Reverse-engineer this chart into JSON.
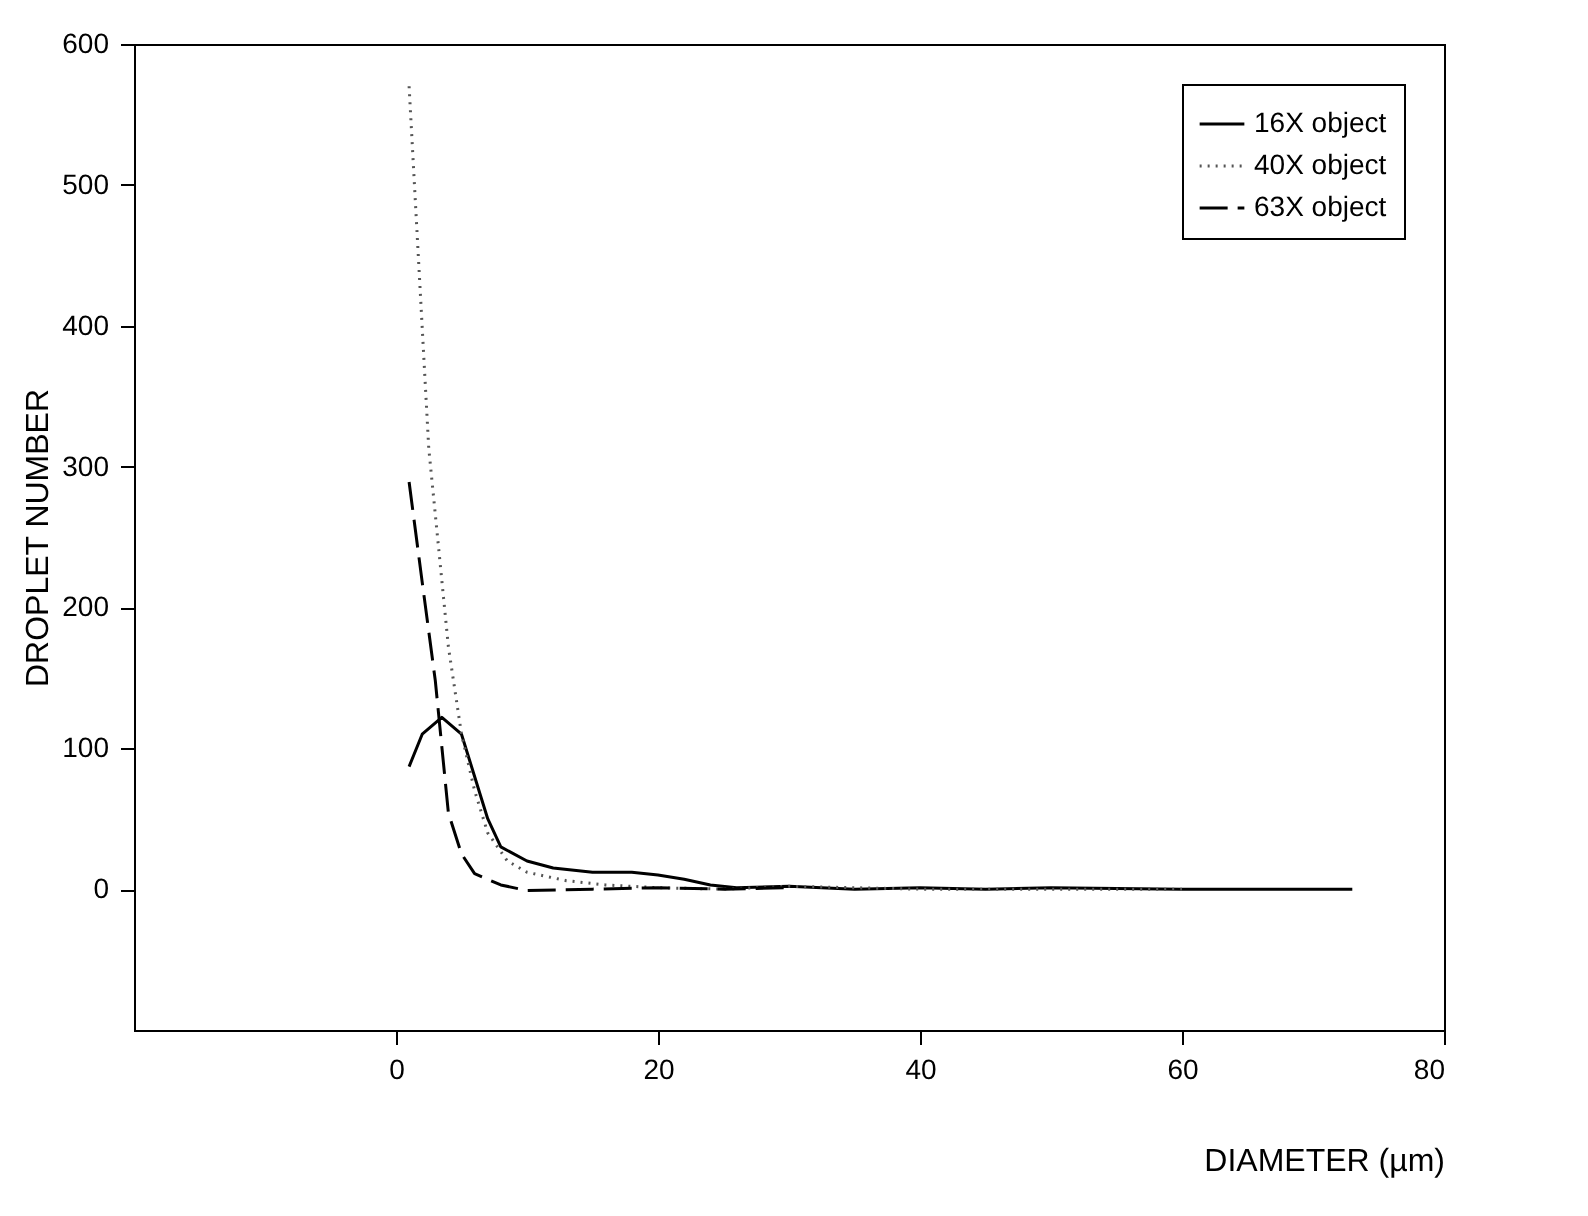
{
  "chart_data": {
    "type": "line",
    "xlabel": "DIAMETER (µm)",
    "ylabel": "DROPLET NUMBER",
    "xlim": [
      -20,
      80
    ],
    "ylim": [
      -100,
      600
    ],
    "xticks": [
      0,
      20,
      40,
      60,
      80
    ],
    "yticks": [
      0,
      100,
      200,
      300,
      400,
      500,
      600
    ],
    "grid": false,
    "legend": "top right",
    "marker": "none",
    "series": [
      {
        "name": "16X object",
        "color": "#000000",
        "line_style": "solid",
        "x": [
          1,
          2,
          3.5,
          5,
          6,
          7,
          8,
          10,
          12,
          15,
          18,
          20,
          22,
          24,
          26,
          30,
          35,
          40,
          45,
          50,
          60,
          70,
          73
        ],
        "values": [
          87,
          110,
          122,
          110,
          80,
          50,
          30,
          20,
          15,
          12,
          12,
          10,
          7,
          3,
          1,
          2,
          0,
          1,
          0,
          1,
          0,
          0,
          0
        ]
      },
      {
        "name": "40X object",
        "color": "#555555",
        "line_style": "dotted",
        "x": [
          1,
          2.5,
          4,
          5,
          6,
          7,
          8.5,
          10,
          13,
          16,
          20,
          25,
          30,
          40,
          50,
          60
        ],
        "values": [
          570,
          313,
          172,
          110,
          70,
          40,
          20,
          12,
          6,
          3,
          1,
          0,
          2,
          0,
          0,
          0
        ]
      },
      {
        "name": "63X object",
        "color": "#000000",
        "line_style": "dashed",
        "x": [
          1,
          2,
          3,
          4,
          5,
          6,
          8,
          10,
          15,
          20,
          25,
          30
        ],
        "values": [
          289,
          218,
          148,
          54,
          25,
          11,
          3,
          -1,
          0,
          1,
          0,
          1
        ]
      }
    ]
  }
}
